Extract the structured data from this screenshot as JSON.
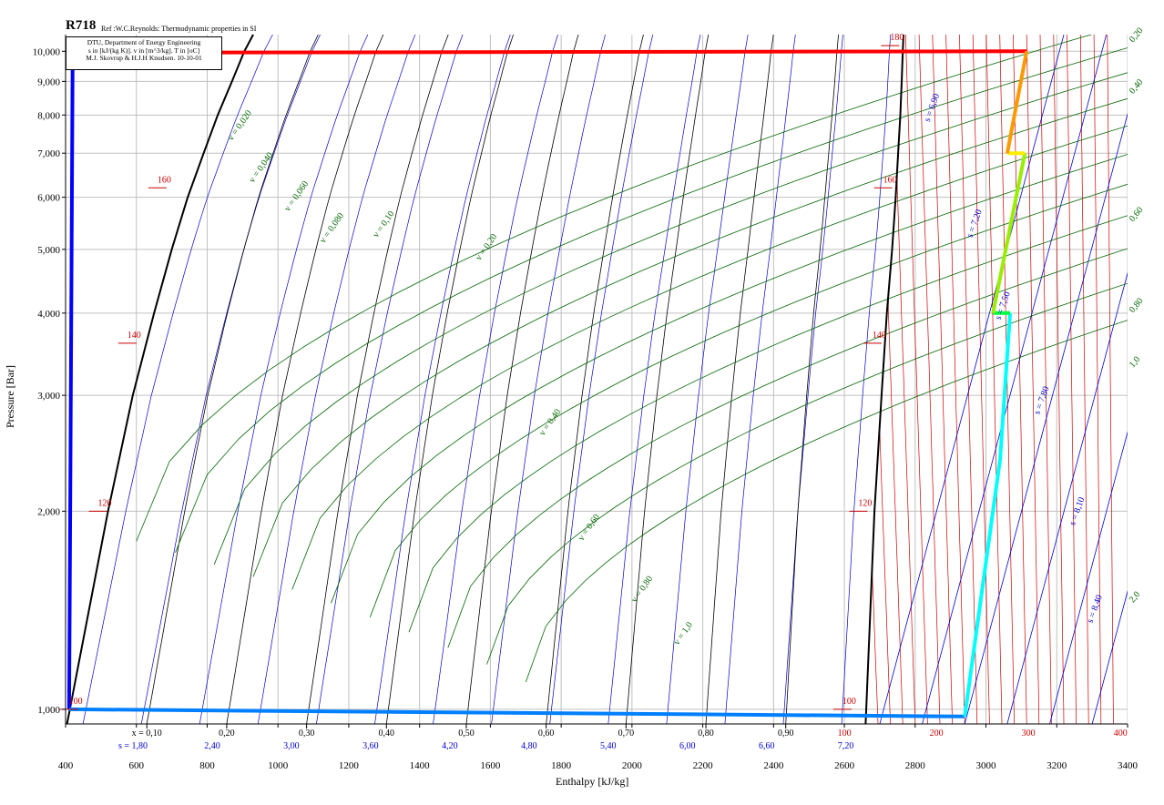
{
  "header": {
    "title": "R718",
    "reference": "Ref :W.C.Reynolds: Thermodynamic properties in SI"
  },
  "info_box": {
    "line1": "DTU, Department of Energy Engineering",
    "line2": "s in [kJ/(kg K)]. v in [m^3/kg]. T in [oC]",
    "line3": "M.J. Skovrup & H.J.H Knudsen. 10-10-01"
  },
  "colors": {
    "isotherm": "#cc0000",
    "isentrope": "#0000cc",
    "isochore": "#006600",
    "saturation": "#000000",
    "grid": "#c0c0c0"
  },
  "chart_data": {
    "type": "line",
    "xlabel": "Enthalpy [kJ/kg]",
    "ylabel": "Pressure [Bar]",
    "xlim": [
      400,
      3400
    ],
    "ylim": [
      950,
      10600
    ],
    "yscale": "log",
    "grid": true,
    "x_ticks": [
      400,
      600,
      800,
      1000,
      1200,
      1400,
      1600,
      1800,
      2000,
      2200,
      2400,
      2600,
      2800,
      3000,
      3200,
      3400
    ],
    "x_tick_labels": [
      "400",
      "600",
      "800",
      "1000",
      "1200",
      "1400",
      "1600",
      "1800",
      "2000",
      "2200",
      "2400",
      "2600",
      "2800",
      "3000",
      "3200",
      "3400"
    ],
    "y_ticks": [
      1000,
      2000,
      3000,
      4000,
      5000,
      6000,
      7000,
      8000,
      9000,
      10000
    ],
    "y_tick_labels": [
      "1,000",
      "2,000",
      "3,000",
      "4,000",
      "5,000",
      "6,000",
      "7,000",
      "8,000",
      "9,000",
      "10,000"
    ],
    "quality_scale": {
      "x": [
        0.1,
        0.2,
        0.3,
        0.4,
        0.5,
        0.6,
        0.7,
        0.8,
        0.9
      ],
      "labels": [
        "x = 0,10",
        "0,20",
        "0,30",
        "0,40",
        "0,50",
        "0,60",
        "0,70",
        "0,80",
        "0,90"
      ]
    },
    "entropy_scale": {
      "s": [
        1.8,
        2.4,
        3.0,
        3.6,
        4.2,
        4.8,
        5.4,
        6.0,
        6.6,
        7.2
      ],
      "labels": [
        "s = 1,80",
        "2,40",
        "3,00",
        "3,60",
        "4,20",
        "4,80",
        "5,40",
        "6,00",
        "6,60",
        "7,20"
      ]
    },
    "temperature_scale": {
      "t": [
        100,
        200,
        300,
        400
      ],
      "labels": [
        "100",
        "200",
        "300",
        "400"
      ]
    },
    "saturation_dome": {
      "liquid": [
        {
          "h": 404,
          "p": 950
        },
        {
          "h": 520,
          "p": 2000
        },
        {
          "h": 590,
          "p": 3000
        },
        {
          "h": 650,
          "p": 4000
        },
        {
          "h": 700,
          "p": 5000
        },
        {
          "h": 745,
          "p": 6000
        },
        {
          "h": 790,
          "p": 7000
        },
        {
          "h": 830,
          "p": 8000
        },
        {
          "h": 870,
          "p": 9000
        },
        {
          "h": 905,
          "p": 10000
        },
        {
          "h": 930,
          "p": 10600
        }
      ],
      "vapor": [
        {
          "h": 2660,
          "p": 950
        },
        {
          "h": 2685,
          "p": 2000
        },
        {
          "h": 2705,
          "p": 3000
        },
        {
          "h": 2720,
          "p": 4000
        },
        {
          "h": 2735,
          "p": 5000
        },
        {
          "h": 2745,
          "p": 6000
        },
        {
          "h": 2752,
          "p": 7000
        },
        {
          "h": 2758,
          "p": 8000
        },
        {
          "h": 2762,
          "p": 9000
        },
        {
          "h": 2765,
          "p": 10000
        },
        {
          "h": 2767,
          "p": 10600
        }
      ]
    },
    "isotherm_labels": [
      {
        "label": "100",
        "h": 430,
        "p": 1000
      },
      {
        "label": "120",
        "h": 512,
        "p": 2000
      },
      {
        "label": "140",
        "h": 595,
        "p": 3600
      },
      {
        "label": "160",
        "h": 680,
        "p": 6200
      },
      {
        "label": "180",
        "h": 2750,
        "p": 10200
      },
      {
        "label": "100",
        "h": 2615,
        "p": 1000
      },
      {
        "label": "120",
        "h": 2660,
        "p": 2000
      },
      {
        "label": "140",
        "h": 2700,
        "p": 3600
      },
      {
        "label": "160",
        "h": 2730,
        "p": 6200
      }
    ],
    "isochore_labels": [
      {
        "label": "v = 0,020",
        "h": 870,
        "p": 7300
      },
      {
        "label": "v = 0,040",
        "h": 930,
        "p": 6300
      },
      {
        "label": "v = 0,060",
        "h": 1030,
        "p": 5700
      },
      {
        "label": "v = 0,080",
        "h": 1130,
        "p": 5100
      },
      {
        "label": "v = 0,10",
        "h": 1280,
        "p": 5200
      },
      {
        "label": "v = 0,20",
        "h": 1570,
        "p": 4800
      },
      {
        "label": "v = 0,40",
        "h": 1750,
        "p": 2600
      },
      {
        "label": "v = 0,60",
        "h": 1860,
        "p": 1800
      },
      {
        "label": "v = 0,80",
        "h": 2010,
        "p": 1450
      },
      {
        "label": "v = 1,0",
        "h": 2130,
        "p": 1250
      }
    ],
    "isochore_right_labels": [
      {
        "label": "0,20",
        "p": 10300
      },
      {
        "label": "0,40",
        "p": 8600
      },
      {
        "label": "0,60",
        "p": 5500
      },
      {
        "label": "0,80",
        "p": 4000
      },
      {
        "label": "1,0",
        "p": 3300
      },
      {
        "label": "2,0",
        "p": 1450
      }
    ],
    "isentrope_labels": [
      {
        "label": "s = 6,90",
        "h": 2840,
        "p": 7800
      },
      {
        "label": "s = 7,20",
        "h": 2960,
        "p": 5200
      },
      {
        "label": "s = 7,50",
        "h": 3040,
        "p": 3900
      },
      {
        "label": "s = 7,80",
        "h": 3150,
        "p": 2800
      },
      {
        "label": "s = 8,10",
        "h": 3250,
        "p": 1900
      },
      {
        "label": "s = 8,40",
        "h": 3300,
        "p": 1350
      }
    ],
    "series": [
      {
        "color": "#ff0000",
        "points": [
          {
            "h": 420,
            "p": 9950
          },
          {
            "h": 3115,
            "p": 10000
          }
        ]
      },
      {
        "color": "#0000ff",
        "points": [
          {
            "h": 420,
            "p": 9950
          },
          {
            "h": 410,
            "p": 1000
          }
        ]
      },
      {
        "color": "#0080ff",
        "points": [
          {
            "h": 410,
            "p": 1000
          },
          {
            "h": 2940,
            "p": 975
          }
        ]
      },
      {
        "color": "#00ffff",
        "points": [
          {
            "h": 2940,
            "p": 975
          },
          {
            "h": 3040,
            "p": 2400
          },
          {
            "h": 3068,
            "p": 4000
          }
        ]
      },
      {
        "color": "#00ff40",
        "points": [
          {
            "h": 3068,
            "p": 4000
          },
          {
            "h": 3020,
            "p": 4000
          }
        ]
      },
      {
        "color": "#99ee00",
        "points": [
          {
            "h": 3020,
            "p": 4000
          },
          {
            "h": 3110,
            "p": 7000
          }
        ]
      },
      {
        "color": "#ffee00",
        "points": [
          {
            "h": 3110,
            "p": 7000
          },
          {
            "h": 3060,
            "p": 7000
          }
        ]
      },
      {
        "color": "#ff9900",
        "points": [
          {
            "h": 3060,
            "p": 7000
          },
          {
            "h": 3115,
            "p": 10000
          }
        ]
      }
    ]
  }
}
